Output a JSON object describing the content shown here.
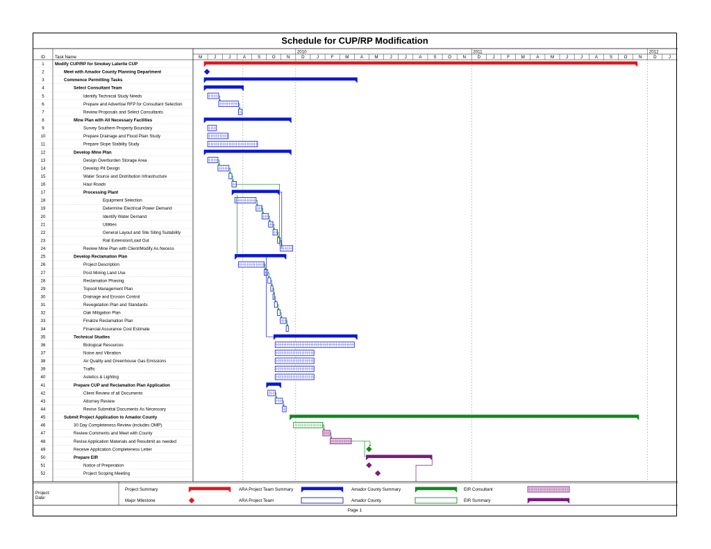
{
  "chart_data": {
    "type": "gantt",
    "title": "Schedule for CUP/RP Modification",
    "columns": {
      "id": "ID",
      "name": "Task Name"
    },
    "years": [
      {
        "label": "2010",
        "month_index": 7
      },
      {
        "label": "2011",
        "month_index": 19
      },
      {
        "label": "2012",
        "month_index": 31
      }
    ],
    "month_letters": [
      "M",
      "J",
      "J",
      "A",
      "S",
      "O",
      "N",
      "D",
      "J",
      "F",
      "M",
      "A",
      "M",
      "J",
      "J",
      "A",
      "S",
      "O",
      "N",
      "D",
      "J",
      "F",
      "M",
      "A",
      "M",
      "J",
      "J",
      "A",
      "S",
      "O",
      "N",
      "D",
      "J"
    ],
    "tasks": [
      {
        "id": "1",
        "name": "Modify CUP/RP for Smokey Laterite CUP",
        "level": 0,
        "bold": true,
        "type": "project-summary",
        "start": 0.75,
        "end": 30.3
      },
      {
        "id": "2",
        "name": "Meet with Amador County Planning Department",
        "level": 1,
        "bold": true,
        "type": "ara-milestone",
        "start": 0.95
      },
      {
        "id": "3",
        "name": "Commence Permitting Tasks",
        "level": 1,
        "bold": true,
        "type": "ara-summary",
        "start": 0.75,
        "end": 11.2
      },
      {
        "id": "4",
        "name": "Select Consultant Team",
        "level": 2,
        "bold": true,
        "type": "ara-summary",
        "start": 0.75,
        "end": 3.45
      },
      {
        "id": "5",
        "name": "Identify Technical Study Needs",
        "level": 3,
        "type": "ara-task",
        "start": 1.0,
        "end": 1.75
      },
      {
        "id": "6",
        "name": "Prepare and Advertise RFP for Consultant Selection",
        "level": 3,
        "type": "ara-task",
        "start": 1.75,
        "end": 3.1
      },
      {
        "id": "7",
        "name": "Review Proposals and Select Consultants",
        "level": 3,
        "type": "ara-task",
        "start": 3.1,
        "end": 3.35
      },
      {
        "id": "8",
        "name": "Mine Plan with All Necessary Facilities",
        "level": 2,
        "bold": true,
        "type": "ara-summary",
        "start": 0.75,
        "end": 6.7
      },
      {
        "id": "9",
        "name": "Survey Southern Property Boundary",
        "level": 3,
        "type": "ara-task",
        "start": 1.0,
        "end": 1.6
      },
      {
        "id": "10",
        "name": "Prepare Drainage and Flood Plain Study",
        "level": 3,
        "type": "ara-task",
        "start": 1.0,
        "end": 2.4
      },
      {
        "id": "11",
        "name": "Prepare Slope Stability Study",
        "level": 3,
        "type": "ara-task",
        "start": 1.0,
        "end": 4.4
      },
      {
        "id": "12",
        "name": "Develop Mine Plan",
        "level": 2,
        "bold": true,
        "type": "ara-summary",
        "start": 0.75,
        "end": 6.7
      },
      {
        "id": "13",
        "name": "Design Overburden Storage Area",
        "level": 3,
        "type": "ara-task",
        "start": 1.0,
        "end": 1.7
      },
      {
        "id": "14",
        "name": "Develop Pit Design",
        "level": 3,
        "type": "ara-task",
        "start": 1.7,
        "end": 2.45
      },
      {
        "id": "15",
        "name": "Water Source and Distribution Infrastructure",
        "level": 3,
        "type": "ara-task",
        "start": 2.45,
        "end": 2.65
      },
      {
        "id": "16",
        "name": "Haul Roads",
        "level": 3,
        "type": "ara-task",
        "start": 2.65,
        "end": 2.95
      },
      {
        "id": "17",
        "name": "Processing Plant",
        "level": 3,
        "bold": true,
        "type": "ara-summary",
        "start": 2.65,
        "end": 5.9
      },
      {
        "id": "18",
        "name": "Equipment Selection",
        "level": 4,
        "type": "ara-task",
        "start": 2.85,
        "end": 4.3
      },
      {
        "id": "19",
        "name": "Determine Electrical Power Demand",
        "level": 4,
        "type": "ara-task",
        "start": 4.3,
        "end": 4.7
      },
      {
        "id": "20",
        "name": "Identify Water Demand",
        "level": 4,
        "type": "ara-task",
        "start": 4.7,
        "end": 5.15
      },
      {
        "id": "21",
        "name": "Utilities",
        "level": 4,
        "type": "ara-task",
        "start": 5.15,
        "end": 5.45
      },
      {
        "id": "22",
        "name": "General Layout and Site Siting Suitability",
        "level": 4,
        "type": "ara-task",
        "start": 5.45,
        "end": 5.75
      },
      {
        "id": "23",
        "name": "Rail Extension/Load Out",
        "level": 4,
        "type": "ara-task",
        "start": 5.75,
        "end": 5.95
      },
      {
        "id": "24",
        "name": "Review Mine Plan with Client/Modify As Necess",
        "level": 3,
        "type": "ara-task",
        "start": 5.95,
        "end": 6.8
      },
      {
        "id": "25",
        "name": "Develop Reclamation Plan",
        "level": 2,
        "bold": true,
        "type": "ara-summary",
        "start": 2.85,
        "end": 6.35
      },
      {
        "id": "26",
        "name": "Project Description",
        "level": 3,
        "type": "ara-task",
        "start": 3.1,
        "end": 4.85
      },
      {
        "id": "27",
        "name": "Post Mining Land Use",
        "level": 3,
        "type": "ara-task",
        "start": 4.85,
        "end": 5.1
      },
      {
        "id": "28",
        "name": "Reclamation Phasing",
        "level": 3,
        "type": "ara-task",
        "start": 5.1,
        "end": 5.3
      },
      {
        "id": "29",
        "name": "Topsoil Management Plan",
        "level": 3,
        "type": "ara-task",
        "start": 5.3,
        "end": 5.45
      },
      {
        "id": "30",
        "name": "Drainage and Erosion Control",
        "level": 3,
        "type": "ara-task",
        "start": 5.45,
        "end": 5.55
      },
      {
        "id": "31",
        "name": "Revegetation Plan and Standards",
        "level": 3,
        "type": "ara-task",
        "start": 5.55,
        "end": 5.75
      },
      {
        "id": "32",
        "name": "Oak Mitigation Plan",
        "level": 3,
        "type": "ara-task",
        "start": 5.75,
        "end": 5.95
      },
      {
        "id": "33",
        "name": "Finalize Reclamation Plan",
        "level": 3,
        "type": "ara-task",
        "start": 5.95,
        "end": 6.35
      },
      {
        "id": "34",
        "name": "Financial Assurance Cost Estimate",
        "level": 3,
        "type": "ara-task",
        "start": 6.35,
        "end": 6.5
      },
      {
        "id": "35",
        "name": "Technical Studies",
        "level": 2,
        "bold": true,
        "type": "ara-summary",
        "start": 5.5,
        "end": 11.2
      },
      {
        "id": "36",
        "name": "Biological Resources",
        "level": 3,
        "type": "ara-task",
        "start": 5.6,
        "end": 11.0
      },
      {
        "id": "37",
        "name": "Noise and Vibration",
        "level": 3,
        "type": "ara-task",
        "start": 5.6,
        "end": 8.25
      },
      {
        "id": "38",
        "name": "Air Quality and Greenhouse Gas Emissions",
        "level": 3,
        "type": "ara-task",
        "start": 5.6,
        "end": 8.25
      },
      {
        "id": "39",
        "name": "Traffic",
        "level": 3,
        "type": "ara-task",
        "start": 5.6,
        "end": 8.25
      },
      {
        "id": "40",
        "name": "Astetics & Lighting",
        "level": 3,
        "type": "ara-task",
        "start": 5.6,
        "end": 8.25
      },
      {
        "id": "41",
        "name": "Prepare CUP and Reclamation Plan Application",
        "level": 2,
        "bold": true,
        "type": "ara-summary",
        "start": 5.0,
        "end": 6.0
      },
      {
        "id": "42",
        "name": "Client Review of all Documents",
        "level": 3,
        "type": "ara-task",
        "start": 5.1,
        "end": 5.6
      },
      {
        "id": "43",
        "name": "Attorney Review",
        "level": 3,
        "type": "ara-task",
        "start": 5.6,
        "end": 6.1
      },
      {
        "id": "44",
        "name": "Revise Submittal Documents As Necessary",
        "level": 3,
        "type": "ara-task",
        "start": 6.1,
        "end": 6.35
      },
      {
        "id": "45",
        "name": "Submit Project Application to Amador County",
        "level": 1,
        "bold": true,
        "type": "county-summary",
        "start": 6.6,
        "end": 30.4
      },
      {
        "id": "46",
        "name": "30 Day Completeness Review (includes OMP)",
        "level": 2,
        "type": "county-task",
        "start": 6.85,
        "end": 8.85
      },
      {
        "id": "47",
        "name": "Review Comments and Meet with County",
        "level": 2,
        "type": "eir-task",
        "start": 8.85,
        "end": 9.35
      },
      {
        "id": "48",
        "name": "Revise Application Materials and Resubmit as needed",
        "level": 2,
        "type": "eir-task",
        "start": 9.35,
        "end": 10.8
      },
      {
        "id": "49",
        "name": "Receive Application Completeness Letter",
        "level": 2,
        "type": "county-milestone",
        "start": 12.0
      },
      {
        "id": "50",
        "name": "Prepare EIR",
        "level": 2,
        "bold": true,
        "type": "eir-summary",
        "start": 11.8,
        "end": 16.3
      },
      {
        "id": "51",
        "name": "Notice of Preperation",
        "level": 3,
        "type": "eir-milestone",
        "start": 12.0
      },
      {
        "id": "52",
        "name": "Project Scoping Meeting",
        "level": 3,
        "type": "eir-milestone",
        "start": 12.6
      }
    ],
    "legend": [
      {
        "label": "Project Summary",
        "style": "project-summary"
      },
      {
        "label": "Major Milestone",
        "style": "project-milestone"
      },
      {
        "label": "ARA Project Team Summary",
        "style": "ara-summary"
      },
      {
        "label": "ARA Project Team",
        "style": "ara-outline"
      },
      {
        "label": "Amador County Summary",
        "style": "county-summary"
      },
      {
        "label": "Amador County",
        "style": "county-outline"
      },
      {
        "label": "EIR Consultant",
        "style": "eir-task"
      },
      {
        "label": "EIR Summary",
        "style": "eir-summary"
      }
    ],
    "footer": {
      "project_label": "Project:",
      "date_label": "Date:",
      "page": "Page 1"
    },
    "colors": {
      "red": "#e8141b",
      "blue": "#0a18d6",
      "green": "#0e8a1b",
      "purple": "#7a1a82",
      "eirfill": "#e7cfe0"
    }
  }
}
